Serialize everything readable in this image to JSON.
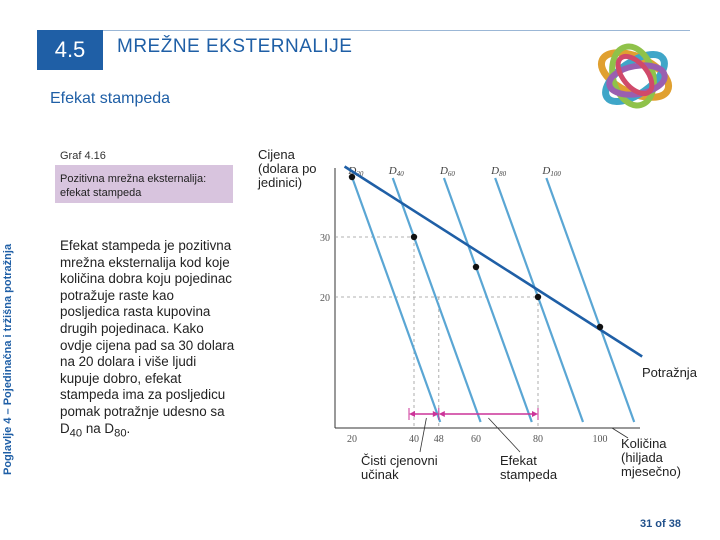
{
  "header": {
    "number": "4.5",
    "title": "MREŽNE EKSTERNALIJE",
    "subtitle": "Efekat stampeda"
  },
  "side_label": "Poglavlje 4 – Pojedinačna i tržišna potražnja",
  "figure": {
    "label": "Graf 4.16",
    "caption": "Pozitivna mrežna eksternalija: efekat stampeda"
  },
  "body": {
    "text": "Efekat stampeda je pozitivna mrežna eksternalija kod koje količina dobra koju pojedinac potražuje raste kao posljedica rasta kupovina drugih pojedinaca. Kako ovdje cijena pad sa 30 dolara na 20 dolara i više ljudi kupuje dobro, efekat stampeda ima za posljedicu pomak potražnje udesno sa D",
    "sub1": "40",
    "mid": " na D",
    "sub2": "80",
    "end": "."
  },
  "chart_data": {
    "type": "line",
    "ylabel": "Cijena (dolara po jedinici)",
    "xlabel": "Količina (hiljada mjesečno)",
    "x_ticks": [
      20,
      40,
      48,
      60,
      80,
      100
    ],
    "x_tick_labels": [
      "20",
      "40",
      "48",
      "60",
      "80",
      "100"
    ],
    "y_ticks": [
      20,
      30
    ],
    "y_tick_labels": [
      "20",
      "30"
    ],
    "series_labels": [
      {
        "prefix": "D",
        "sub": "20"
      },
      {
        "prefix": "D",
        "sub": "40"
      },
      {
        "prefix": "D",
        "sub": "60"
      },
      {
        "prefix": "D",
        "sub": "80"
      },
      {
        "prefix": "D",
        "sub": "100"
      }
    ],
    "demand_label": "Potražnja",
    "points": [
      {
        "x": 20,
        "y": 40
      },
      {
        "x": 40,
        "y": 30
      },
      {
        "x": 60,
        "y": 25
      },
      {
        "x": 80,
        "y": 20
      },
      {
        "x": 100,
        "y": 15
      }
    ],
    "annotations": {
      "pure_effect": "Čisti cjenovni učinak",
      "bandwagon": "Efekat stampeda"
    },
    "colors": {
      "lines": "#5aa6d4",
      "demand": "#1f5fa6",
      "arrows": "#cc3399"
    }
  },
  "footer": {
    "page": "31 of 38"
  }
}
